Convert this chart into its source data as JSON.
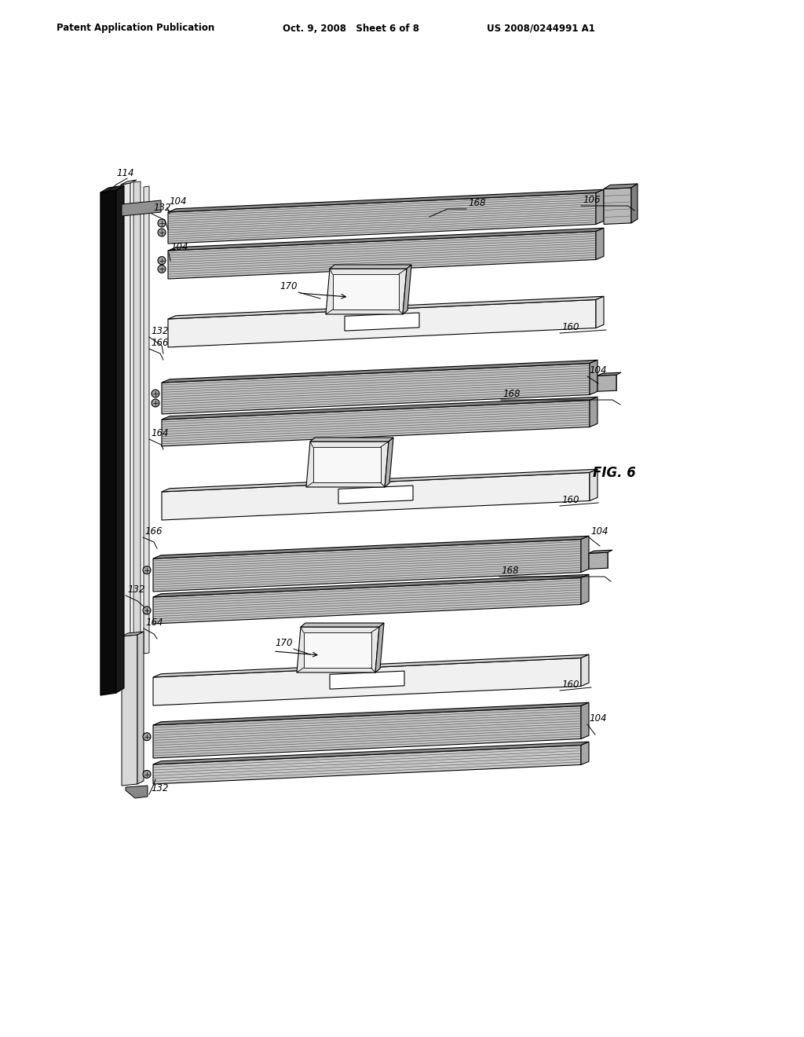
{
  "bg_color": "#ffffff",
  "line_color": "#000000",
  "header_left": "Patent Application Publication",
  "header_center": "Oct. 9, 2008   Sheet 6 of 8",
  "header_right": "US 2008/0244991 A1",
  "fig_label": "FIG. 6"
}
